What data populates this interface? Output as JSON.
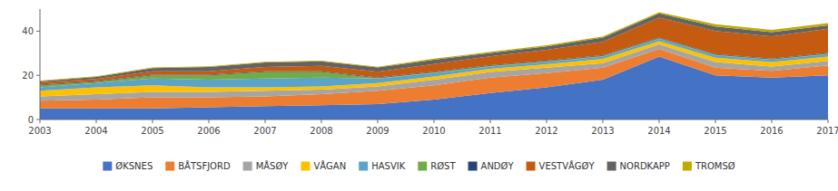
{
  "chart_data": {
    "type": "area",
    "stacked": true,
    "x": [
      2003,
      2004,
      2005,
      2006,
      2007,
      2008,
      2009,
      2010,
      2011,
      2012,
      2013,
      2014,
      2015,
      2016,
      2017
    ],
    "xlim": [
      2003,
      2017
    ],
    "xticks": [
      2003,
      2004,
      2005,
      2006,
      2007,
      2008,
      2009,
      2010,
      2011,
      2012,
      2013,
      2014,
      2015,
      2016,
      2017
    ],
    "ylim": [
      0,
      50
    ],
    "yticks": [
      0,
      20,
      40
    ],
    "grid": false,
    "legend": "bottom",
    "series": [
      {
        "name": "ØKSNES",
        "color": "#4472C4",
        "values": [
          5.0,
          5.0,
          5.0,
          5.5,
          6.0,
          6.5,
          7.0,
          9.0,
          12.0,
          14.5,
          18.0,
          28.5,
          20.0,
          19.0,
          20.0
        ]
      },
      {
        "name": "BÅTSFJORD",
        "color": "#ED7D31",
        "values": [
          3.5,
          4.0,
          5.0,
          4.5,
          4.5,
          5.0,
          6.0,
          6.5,
          7.0,
          6.5,
          5.5,
          3.5,
          3.5,
          3.0,
          4.5
        ]
      },
      {
        "name": "MÅSØY",
        "color": "#A5A5A5",
        "values": [
          2.0,
          2.5,
          2.5,
          2.5,
          2.5,
          2.0,
          2.0,
          2.5,
          2.5,
          2.5,
          2.0,
          2.0,
          2.5,
          2.0,
          2.0
        ]
      },
      {
        "name": "VÅGAN",
        "color": "#FFC000",
        "values": [
          2.5,
          3.0,
          3.0,
          2.0,
          1.5,
          1.5,
          1.5,
          1.5,
          1.5,
          1.5,
          2.0,
          1.5,
          2.0,
          2.0,
          2.0
        ]
      },
      {
        "name": "HASVIK",
        "color": "#5BA3C9",
        "values": [
          1.5,
          2.0,
          3.0,
          3.5,
          4.0,
          4.0,
          2.0,
          1.5,
          1.0,
          1.0,
          1.0,
          1.0,
          1.0,
          1.0,
          1.0
        ]
      },
      {
        "name": "RØST",
        "color": "#70AD47",
        "values": [
          1.0,
          0.5,
          1.5,
          2.0,
          3.0,
          2.5,
          0.3,
          0.3,
          0.3,
          0.3,
          0.3,
          0.3,
          0.3,
          0.3,
          0.3
        ]
      },
      {
        "name": "ANDØY",
        "color": "#264478",
        "values": [
          0.3,
          0.3,
          0.3,
          0.3,
          0.3,
          0.3,
          0.3,
          0.3,
          0.3,
          0.3,
          0.3,
          0.3,
          0.3,
          0.3,
          0.3
        ]
      },
      {
        "name": "VESTVÅGØY",
        "color": "#C55A11",
        "values": [
          1.0,
          1.0,
          1.5,
          1.5,
          2.0,
          2.5,
          2.5,
          3.5,
          4.0,
          5.0,
          6.0,
          9.0,
          10.5,
          10.0,
          11.0
        ]
      },
      {
        "name": "NORDKAPP",
        "color": "#636363",
        "values": [
          0.5,
          1.0,
          1.5,
          2.0,
          2.0,
          2.0,
          2.0,
          2.0,
          1.5,
          1.5,
          2.0,
          2.0,
          2.0,
          2.0,
          1.5
        ]
      },
      {
        "name": "TROMSØ",
        "color": "#BFAA00",
        "values": [
          0.3,
          0.3,
          0.3,
          0.3,
          0.3,
          0.3,
          0.3,
          0.5,
          0.5,
          0.5,
          0.5,
          0.5,
          1.0,
          1.0,
          1.0
        ]
      }
    ]
  }
}
